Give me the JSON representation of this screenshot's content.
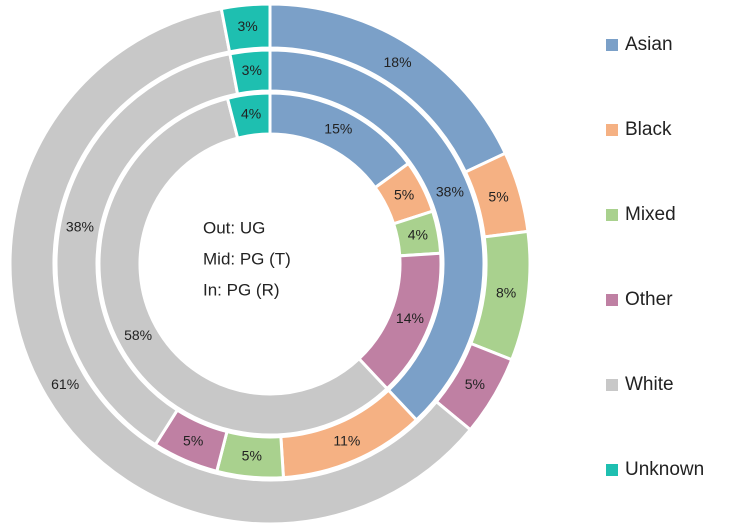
{
  "chart_data": {
    "type": "multi_donut",
    "categories": [
      "Asian",
      "Black",
      "Mixed",
      "Other",
      "White",
      "Unknown"
    ],
    "colors": [
      "#7ba0c8",
      "#f5b183",
      "#a9d18e",
      "#bf80a3",
      "#c8c8c8",
      "#1ebfb0"
    ],
    "series": [
      {
        "name": "Out: UG",
        "values": [
          18,
          5,
          8,
          5,
          61,
          3
        ],
        "value_labels": [
          "18%",
          "5%",
          "8%",
          "5%",
          "61%",
          "3%"
        ]
      },
      {
        "name": "Mid: PG (T)",
        "values": [
          38,
          11,
          5,
          5,
          38,
          3
        ],
        "value_labels": [
          "38%",
          "11%",
          "5%",
          "5%",
          "38%",
          "3%"
        ]
      },
      {
        "name": "In: PG (R)",
        "values": [
          15,
          5,
          4,
          14,
          58,
          4
        ],
        "value_labels": [
          "15%",
          "5%",
          "4%",
          "14%",
          "58%",
          "4%"
        ]
      }
    ],
    "legend": "right"
  }
}
